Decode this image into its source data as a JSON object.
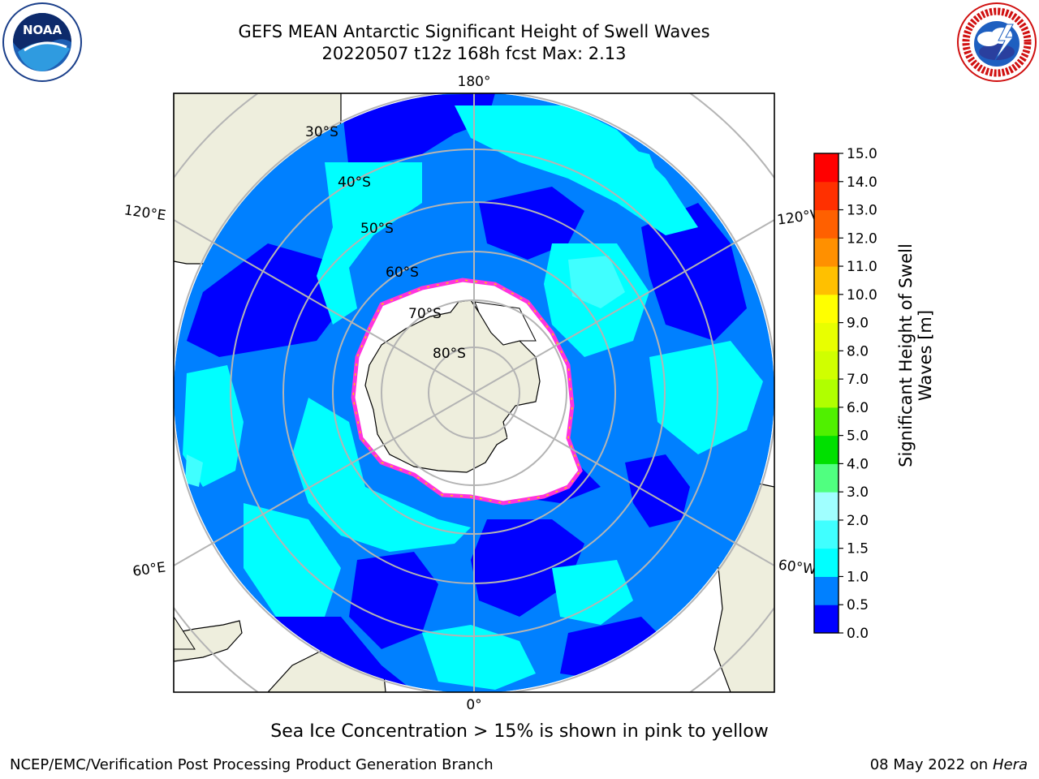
{
  "header": {
    "title_line1": "GEFS MEAN Antarctic Significant Height of Swell Waves",
    "title_line2": "20220507 t12z 168h fcst   Max: 2.13"
  },
  "logos": {
    "noaa": "NOAA",
    "noaa_ring_text": "NATIONAL OCEANIC AND ATMOSPHERIC ADMINISTRATION · U.S. DEPARTMENT OF COMMERCE",
    "nws_ring_text": "NATIONAL WEATHER SERVICE"
  },
  "map": {
    "projection": "south-polar-stereographic",
    "longitude_labels": {
      "top": "180°",
      "bottom": "0°",
      "upper_left": "120°E",
      "upper_right": "120°W",
      "lower_left": "60°E",
      "lower_right": "60°W"
    },
    "latitude_labels": [
      "30°S",
      "40°S",
      "50°S",
      "60°S",
      "70°S",
      "80°S"
    ],
    "colors": {
      "land": "#eeeedd",
      "ocean_0_05": "#0000ff",
      "ocean_05_10": "#0080ff",
      "ocean_10_15": "#00ffff",
      "ocean_15_20": "#40ffff",
      "sea_ice_edge": "#ff33dd",
      "ice_interior": "#ffffff",
      "grid": "#b4b4b4"
    }
  },
  "colorbar": {
    "title_line1": "Significant Height of Swell",
    "title_line2": "Waves [m]",
    "ticks": [
      "15.0",
      "14.0",
      "13.0",
      "12.0",
      "11.0",
      "10.0",
      "9.0",
      "8.0",
      "7.0",
      "6.0",
      "5.0",
      "4.0",
      "3.0",
      "2.0",
      "1.5",
      "1.0",
      "0.5",
      "0.0"
    ],
    "bins": [
      {
        "range": "0.0-0.5",
        "color": "#0000ff"
      },
      {
        "range": "0.5-1.0",
        "color": "#0080ff"
      },
      {
        "range": "1.0-1.5",
        "color": "#00ffff"
      },
      {
        "range": "1.5-2.0",
        "color": "#40ffff"
      },
      {
        "range": "2.0-3.0",
        "color": "#a0ffff"
      },
      {
        "range": "3.0-4.0",
        "color": "#50ff80"
      },
      {
        "range": "4.0-5.0",
        "color": "#00e000"
      },
      {
        "range": "5.0-6.0",
        "color": "#50f000"
      },
      {
        "range": "6.0-7.0",
        "color": "#b0ff00"
      },
      {
        "range": "7.0-8.0",
        "color": "#d0ff00"
      },
      {
        "range": "8.0-9.0",
        "color": "#e8ff00"
      },
      {
        "range": "9.0-10.0",
        "color": "#ffff00"
      },
      {
        "range": "10.0-11.0",
        "color": "#ffc000"
      },
      {
        "range": "11.0-12.0",
        "color": "#ff9000"
      },
      {
        "range": "12.0-13.0",
        "color": "#ff6000"
      },
      {
        "range": "13.0-14.0",
        "color": "#ff3000"
      },
      {
        "range": "14.0-15.0",
        "color": "#ff0000"
      }
    ]
  },
  "note": "Sea Ice Concentration > 15% is shown in pink to yellow",
  "footer": {
    "left": "NCEP/EMC/Verification Post Processing Product Generation Branch",
    "right_date": "08 May 2022 on",
    "right_host": "Hera"
  }
}
